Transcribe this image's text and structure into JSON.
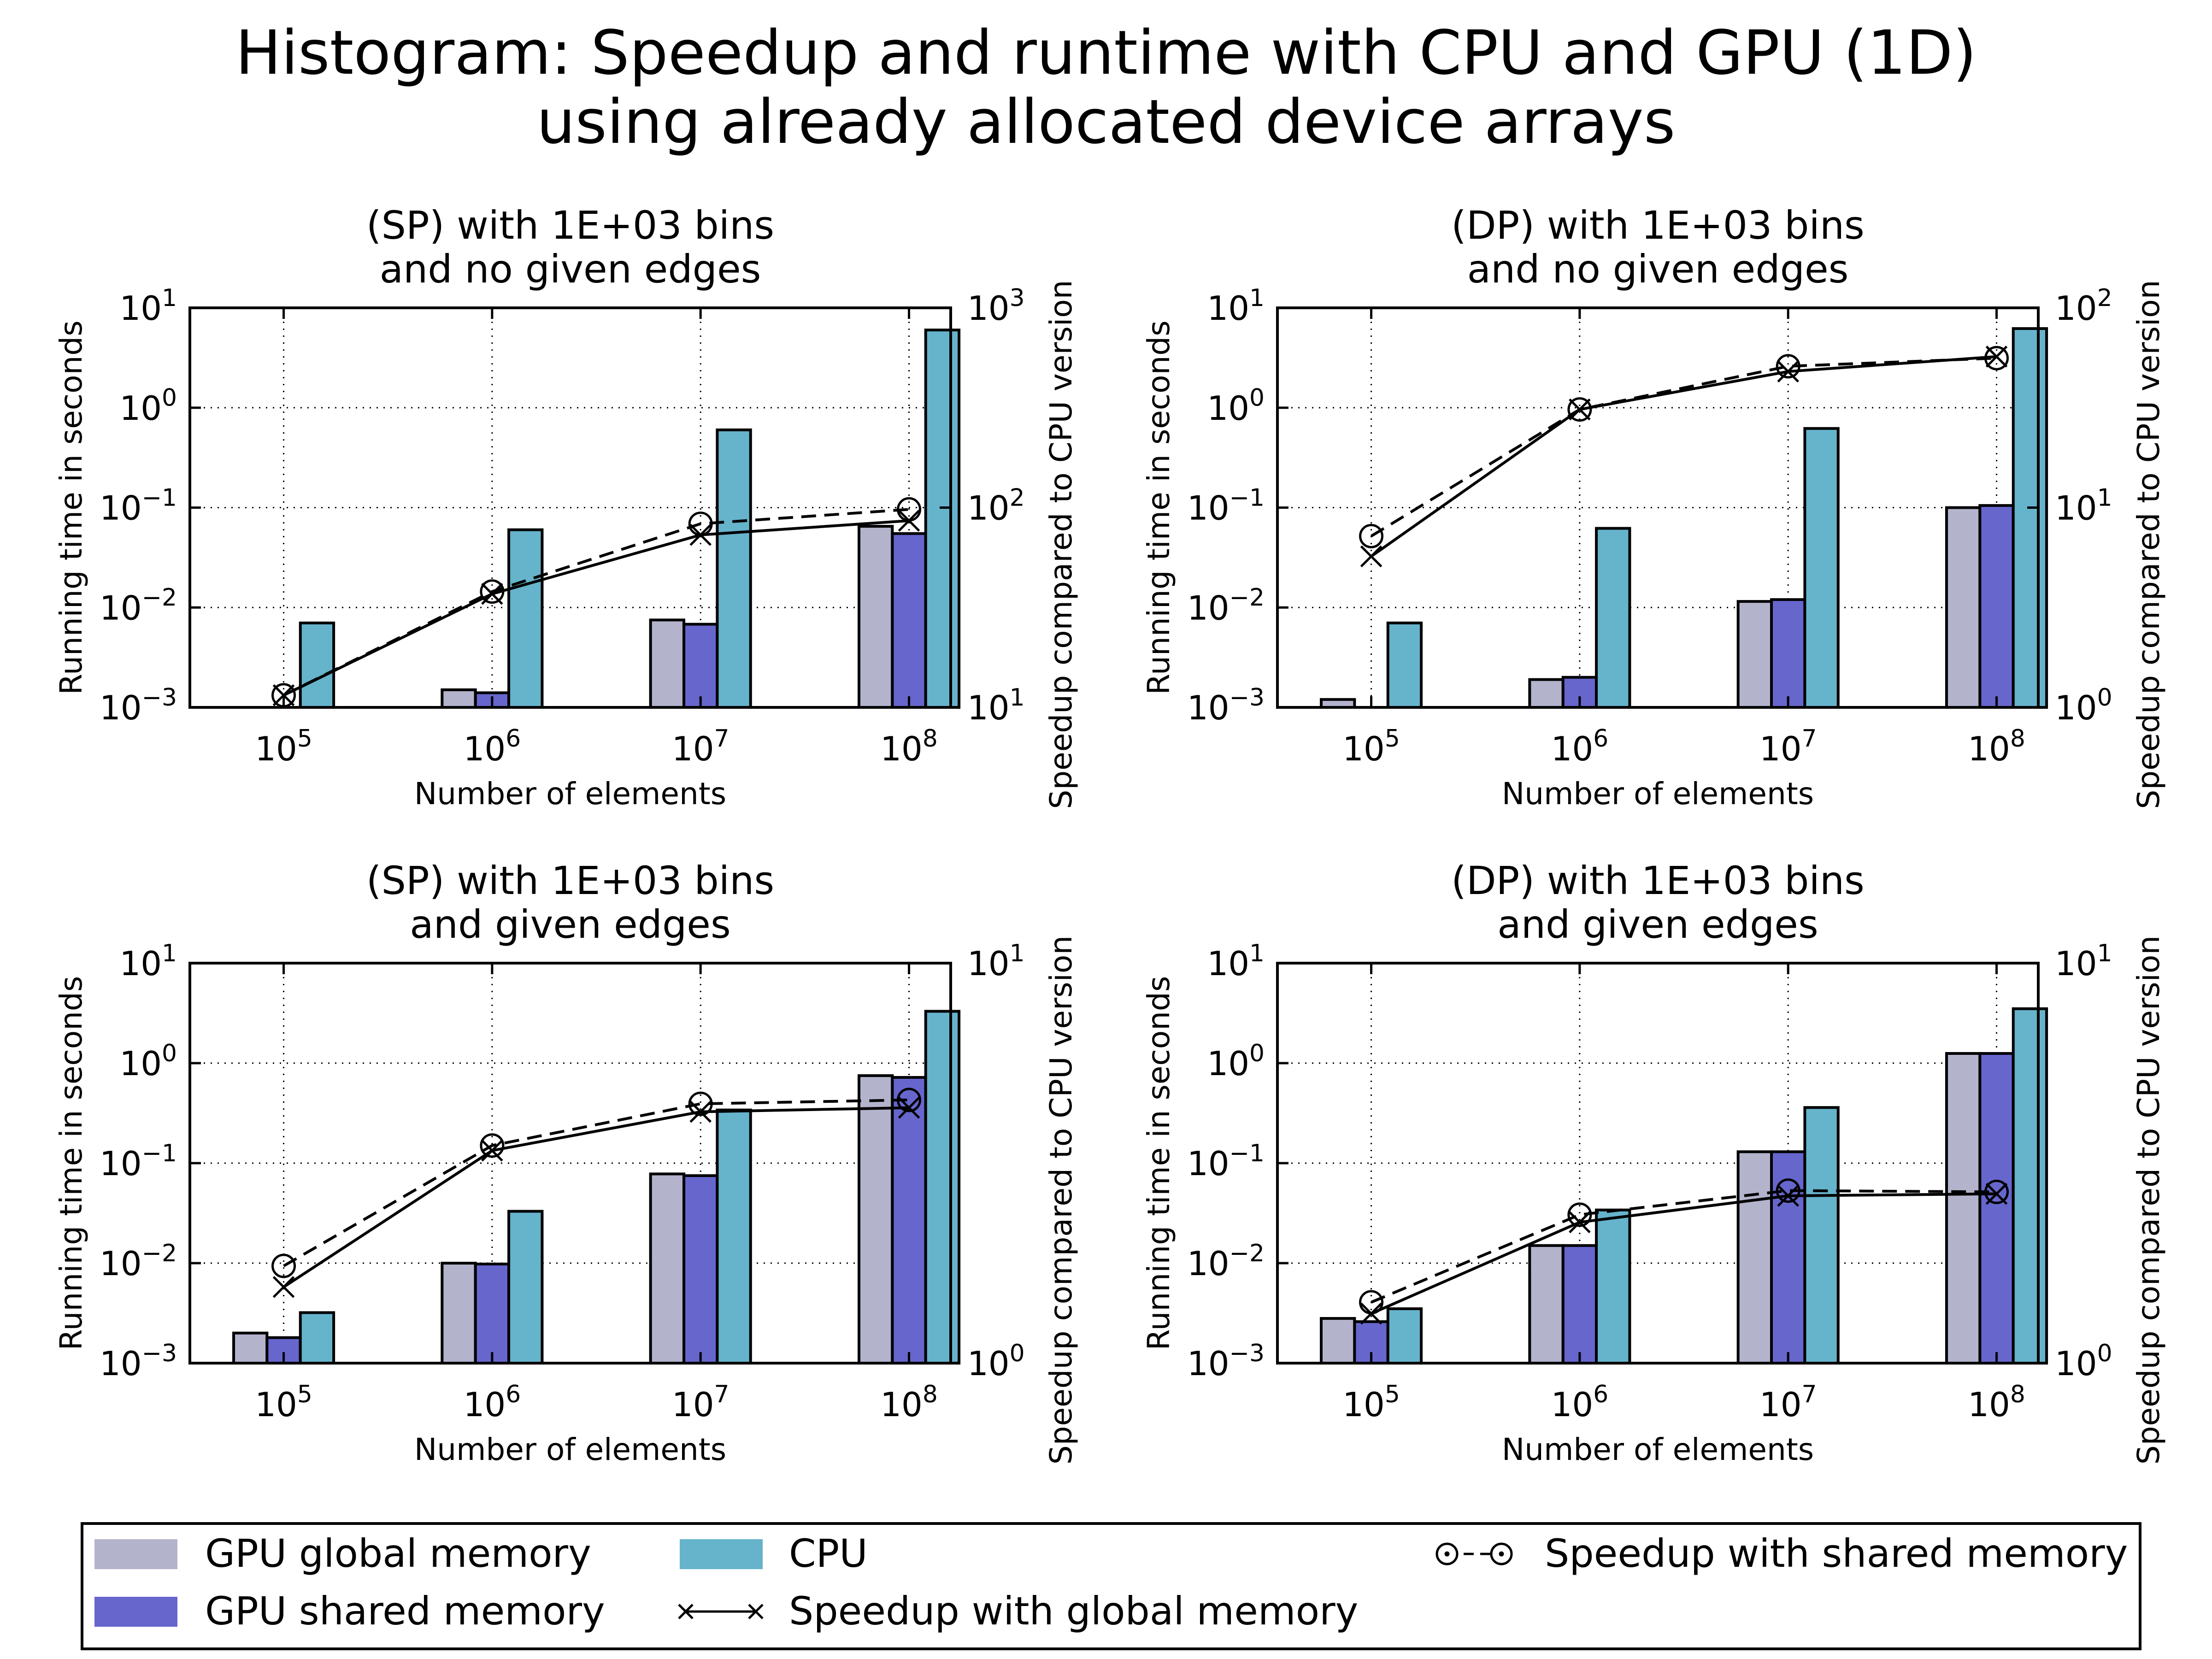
{
  "figure": {
    "title_line1": "Histogram: Speedup and runtime with CPU and GPU (1D)",
    "title_line2": "using already allocated device arrays"
  },
  "colors": {
    "gpu_global": "#b3b3cc",
    "gpu_shared": "#6666cc",
    "cpu": "#66b3cc",
    "speedup_line": "#000000"
  },
  "legend": {
    "gpu_global": "GPU global memory",
    "gpu_shared": "GPU shared memory",
    "cpu": "CPU",
    "speedup_global": "Speedup with global memory",
    "speedup_shared": "Speedup with shared memory"
  },
  "chart_data": [
    {
      "type": "bar",
      "title_line1": "(SP) with 1E+03 bins",
      "title_line2": "and no given edges",
      "xlabel": "Number of elements",
      "ylabel": "Running time in seconds",
      "y2label": "Speedup compared to CPU version",
      "x": [
        100000,
        1000000,
        10000000,
        100000000
      ],
      "x_ticks": [
        "10^5",
        "10^6",
        "10^7",
        "10^8"
      ],
      "y_scale": "log",
      "ylim": [
        0.001,
        10
      ],
      "y_ticks": [
        "10^-3",
        "10^-2",
        "10^-1",
        "10^0",
        "10^1"
      ],
      "y2_scale": "log",
      "y2lim": [
        10,
        1000
      ],
      "y2_ticks": [
        "10^1",
        "10^2",
        "10^3"
      ],
      "grid": true,
      "series": [
        {
          "name": "GPU global memory",
          "kind": "bar",
          "axis": "left",
          "values": [
            0.0008,
            0.0015,
            0.0075,
            0.065
          ]
        },
        {
          "name": "GPU shared memory",
          "kind": "bar",
          "axis": "left",
          "values": [
            0.0008,
            0.0014,
            0.0068,
            0.055
          ]
        },
        {
          "name": "CPU",
          "kind": "bar",
          "axis": "left",
          "values": [
            0.007,
            0.06,
            0.6,
            6.0
          ]
        },
        {
          "name": "Speedup with global memory",
          "kind": "line",
          "axis": "right",
          "values": [
            11.5,
            37,
            73,
            86
          ]
        },
        {
          "name": "Speedup with shared memory",
          "kind": "line",
          "axis": "right",
          "values": [
            11.5,
            38,
            83,
            98
          ]
        }
      ]
    },
    {
      "type": "bar",
      "title_line1": "(DP) with 1E+03 bins",
      "title_line2": "and no given edges",
      "xlabel": "Number of elements",
      "ylabel": "Running time in seconds",
      "y2label": "Speedup compared to CPU version",
      "x": [
        100000,
        1000000,
        10000000,
        100000000
      ],
      "x_ticks": [
        "10^5",
        "10^6",
        "10^7",
        "10^8"
      ],
      "y_scale": "log",
      "ylim": [
        0.001,
        10
      ],
      "y_ticks": [
        "10^-3",
        "10^-2",
        "10^-1",
        "10^0",
        "10^1"
      ],
      "y2_scale": "log",
      "y2lim": [
        1,
        100
      ],
      "y2_ticks": [
        "10^0",
        "10^1",
        "10^2"
      ],
      "grid": true,
      "series": [
        {
          "name": "GPU global memory",
          "kind": "bar",
          "axis": "left",
          "values": [
            0.0012,
            0.0019,
            0.0115,
            0.1
          ]
        },
        {
          "name": "GPU shared memory",
          "kind": "bar",
          "axis": "left",
          "values": [
            0.0009,
            0.002,
            0.012,
            0.105
          ]
        },
        {
          "name": "CPU",
          "kind": "bar",
          "axis": "left",
          "values": [
            0.007,
            0.062,
            0.62,
            6.2
          ]
        },
        {
          "name": "Speedup with global memory",
          "kind": "line",
          "axis": "right",
          "values": [
            5.7,
            31,
            48,
            57
          ]
        },
        {
          "name": "Speedup with shared memory",
          "kind": "line",
          "axis": "right",
          "values": [
            7.2,
            31,
            51,
            56
          ]
        }
      ]
    },
    {
      "type": "bar",
      "title_line1": "(SP) with 1E+03 bins",
      "title_line2": "and given edges",
      "xlabel": "Number of elements",
      "ylabel": "Running time in seconds",
      "y2label": "Speedup compared to CPU version",
      "x": [
        100000,
        1000000,
        10000000,
        100000000
      ],
      "x_ticks": [
        "10^5",
        "10^6",
        "10^7",
        "10^8"
      ],
      "y_scale": "log",
      "ylim": [
        0.001,
        10
      ],
      "y_ticks": [
        "10^-3",
        "10^-2",
        "10^-1",
        "10^0",
        "10^1"
      ],
      "y2_scale": "log",
      "y2lim": [
        1,
        10
      ],
      "y2_ticks": [
        "10^0",
        "10^1"
      ],
      "grid": true,
      "series": [
        {
          "name": "GPU global memory",
          "kind": "bar",
          "axis": "left",
          "values": [
            0.002,
            0.01,
            0.078,
            0.75
          ]
        },
        {
          "name": "GPU shared memory",
          "kind": "bar",
          "axis": "left",
          "values": [
            0.0018,
            0.0098,
            0.075,
            0.72
          ]
        },
        {
          "name": "CPU",
          "kind": "bar",
          "axis": "left",
          "values": [
            0.0032,
            0.033,
            0.34,
            3.3
          ]
        },
        {
          "name": "Speedup with global memory",
          "kind": "line",
          "axis": "right",
          "values": [
            1.55,
            3.4,
            4.25,
            4.35
          ]
        },
        {
          "name": "Speedup with shared memory",
          "kind": "line",
          "axis": "right",
          "values": [
            1.75,
            3.5,
            4.45,
            4.55
          ]
        }
      ]
    },
    {
      "type": "bar",
      "title_line1": "(DP) with 1E+03 bins",
      "title_line2": "and given edges",
      "xlabel": "Number of elements",
      "ylabel": "Running time in seconds",
      "y2label": "Speedup compared to CPU version",
      "x": [
        100000,
        1000000,
        10000000,
        100000000
      ],
      "x_ticks": [
        "10^5",
        "10^6",
        "10^7",
        "10^8"
      ],
      "y_scale": "log",
      "ylim": [
        0.001,
        10
      ],
      "y_ticks": [
        "10^-3",
        "10^-2",
        "10^-1",
        "10^0",
        "10^1"
      ],
      "y2_scale": "log",
      "y2lim": [
        1,
        10
      ],
      "y2_ticks": [
        "10^0",
        "10^1"
      ],
      "grid": true,
      "series": [
        {
          "name": "GPU global memory",
          "kind": "bar",
          "axis": "left",
          "values": [
            0.0028,
            0.015,
            0.13,
            1.25
          ]
        },
        {
          "name": "GPU shared memory",
          "kind": "bar",
          "axis": "left",
          "values": [
            0.0026,
            0.015,
            0.13,
            1.25
          ]
        },
        {
          "name": "CPU",
          "kind": "bar",
          "axis": "left",
          "values": [
            0.0035,
            0.034,
            0.36,
            3.5
          ]
        },
        {
          "name": "Speedup with global memory",
          "kind": "line",
          "axis": "right",
          "values": [
            1.33,
            2.25,
            2.62,
            2.65
          ]
        },
        {
          "name": "Speedup with shared memory",
          "kind": "line",
          "axis": "right",
          "values": [
            1.42,
            2.35,
            2.7,
            2.68
          ]
        }
      ]
    }
  ]
}
